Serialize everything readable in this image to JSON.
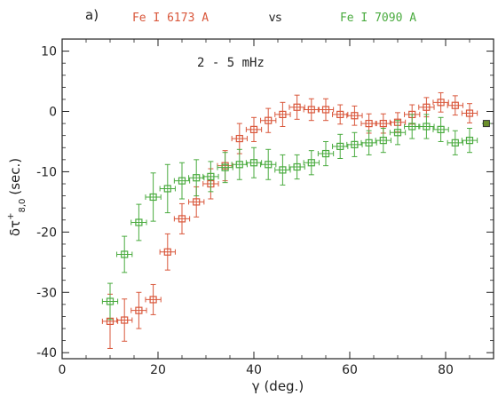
{
  "chart_data": {
    "type": "scatter",
    "panel_label": "a)",
    "title": {
      "left": "Fe I 6173 A",
      "middle": "vs",
      "right": "Fe I 7090 A"
    },
    "annotation": "2 - 5 mHz",
    "xlabel": "γ (deg.)",
    "ylabel": {
      "main": "δτ",
      "sup": "+",
      "sub": "8,0",
      "unit": "(sec.)"
    },
    "xlim": [
      0,
      90
    ],
    "ylim": [
      -41,
      12
    ],
    "xticks": [
      0,
      20,
      40,
      60,
      80
    ],
    "yticks": [
      10,
      0,
      -10,
      -20,
      -30,
      -40
    ],
    "grid": false,
    "colors": {
      "red": "#d9573b",
      "green": "#4aab3f",
      "axis": "#222222"
    },
    "series": [
      {
        "color": "red",
        "x": [
          10,
          13,
          16,
          19,
          22,
          25,
          28,
          31,
          34,
          37,
          40,
          43,
          46,
          49,
          52,
          55,
          58,
          61,
          64,
          67,
          70,
          73,
          76,
          79,
          82,
          85
        ],
        "y": [
          -34.8,
          -34.6,
          -33.0,
          -31.2,
          -23.3,
          -17.8,
          -15.0,
          -12.0,
          -9.0,
          -4.5,
          -3.0,
          -1.5,
          -0.5,
          0.7,
          0.3,
          0.3,
          -0.5,
          -0.7,
          -2.0,
          -2.0,
          -1.8,
          -0.5,
          0.7,
          1.5,
          1.0,
          -0.3
        ],
        "yerr": [
          4.5,
          3.5,
          3.0,
          2.5,
          3.0,
          2.5,
          2.5,
          2.5,
          2.5,
          2.5,
          2.0,
          2.0,
          2.0,
          2.0,
          1.8,
          1.8,
          1.6,
          1.6,
          1.6,
          1.6,
          1.6,
          1.6,
          1.6,
          1.6,
          1.6,
          1.6
        ],
        "xerr": 1.6
      },
      {
        "color": "green",
        "x": [
          10,
          13,
          16,
          19,
          22,
          25,
          28,
          31,
          34,
          37,
          40,
          43,
          46,
          49,
          52,
          55,
          58,
          61,
          64,
          67,
          70,
          73,
          76,
          79,
          82,
          85
        ],
        "y": [
          -31.5,
          -23.7,
          -18.4,
          -14.2,
          -12.8,
          -11.5,
          -11.0,
          -10.8,
          -9.3,
          -8.8,
          -8.5,
          -8.8,
          -9.7,
          -9.2,
          -8.5,
          -7.0,
          -5.8,
          -5.5,
          -5.2,
          -4.8,
          -3.5,
          -2.5,
          -2.5,
          -3.0,
          -5.2,
          -4.8
        ],
        "yerr": [
          3.0,
          3.0,
          3.0,
          4.0,
          4.0,
          3.0,
          3.0,
          2.5,
          2.5,
          2.5,
          2.5,
          2.5,
          2.5,
          2.0,
          2.0,
          2.0,
          2.0,
          2.0,
          2.0,
          2.0,
          2.0,
          2.0,
          2.0,
          2.0,
          2.0,
          2.0
        ],
        "xerr": 1.6
      }
    ],
    "extra_point": {
      "x": 88.5,
      "y": -2.0
    }
  }
}
